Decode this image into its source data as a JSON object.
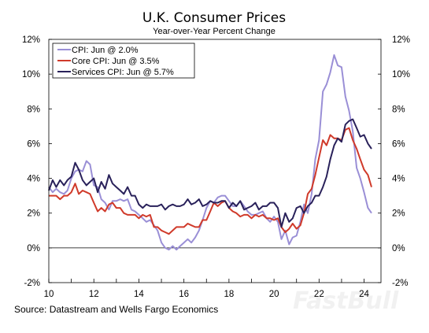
{
  "chart_data": {
    "type": "line",
    "title": "U.K. Consumer Prices",
    "subtitle": "Year-over-Year Percent Change",
    "ylim": [
      -2,
      12
    ],
    "xlim": [
      2010,
      2024.75
    ],
    "y_ticks_left": [
      "12%",
      "10%",
      "8%",
      "6%",
      "4%",
      "2%",
      "0%",
      "-2%"
    ],
    "y_ticks_right": [
      "12%",
      "10%",
      "8%",
      "6%",
      "4%",
      "2%",
      "0%",
      "-2%"
    ],
    "x_ticks": [
      "10",
      "12",
      "14",
      "16",
      "18",
      "20",
      "22",
      "24"
    ],
    "legend_placement": "top-left",
    "series": [
      {
        "name": "CPI: Jun @ 2.0%",
        "color": "#9a8fd6",
        "points": [
          [
            2010.0,
            3.5
          ],
          [
            2010.17,
            3.2
          ],
          [
            2010.33,
            3.4
          ],
          [
            2010.5,
            3.2
          ],
          [
            2010.67,
            3.1
          ],
          [
            2010.83,
            3.3
          ],
          [
            2011.0,
            4.0
          ],
          [
            2011.17,
            4.4
          ],
          [
            2011.33,
            4.5
          ],
          [
            2011.5,
            4.4
          ],
          [
            2011.67,
            5.0
          ],
          [
            2011.83,
            4.8
          ],
          [
            2012.0,
            3.6
          ],
          [
            2012.17,
            3.5
          ],
          [
            2012.33,
            2.8
          ],
          [
            2012.5,
            2.6
          ],
          [
            2012.67,
            2.2
          ],
          [
            2012.83,
            2.7
          ],
          [
            2013.0,
            2.7
          ],
          [
            2013.17,
            2.8
          ],
          [
            2013.33,
            2.7
          ],
          [
            2013.5,
            2.8
          ],
          [
            2013.67,
            2.2
          ],
          [
            2013.83,
            2.1
          ],
          [
            2014.0,
            1.9
          ],
          [
            2014.17,
            1.7
          ],
          [
            2014.33,
            1.5
          ],
          [
            2014.5,
            1.6
          ],
          [
            2014.67,
            1.3
          ],
          [
            2014.83,
            1.0
          ],
          [
            2015.0,
            0.3
          ],
          [
            2015.17,
            0.0
          ],
          [
            2015.33,
            -0.1
          ],
          [
            2015.5,
            0.1
          ],
          [
            2015.67,
            -0.1
          ],
          [
            2015.83,
            0.1
          ],
          [
            2016.0,
            0.3
          ],
          [
            2016.17,
            0.5
          ],
          [
            2016.33,
            0.3
          ],
          [
            2016.5,
            0.6
          ],
          [
            2016.67,
            1.0
          ],
          [
            2016.83,
            1.6
          ],
          [
            2017.0,
            2.3
          ],
          [
            2017.17,
            2.7
          ],
          [
            2017.33,
            2.6
          ],
          [
            2017.5,
            2.9
          ],
          [
            2017.67,
            3.0
          ],
          [
            2017.83,
            3.0
          ],
          [
            2018.0,
            2.7
          ],
          [
            2018.17,
            2.4
          ],
          [
            2018.33,
            2.4
          ],
          [
            2018.5,
            2.7
          ],
          [
            2018.67,
            2.4
          ],
          [
            2018.83,
            2.1
          ],
          [
            2019.0,
            1.9
          ],
          [
            2019.17,
            1.9
          ],
          [
            2019.33,
            2.0
          ],
          [
            2019.5,
            2.1
          ],
          [
            2019.67,
            1.7
          ],
          [
            2019.83,
            1.5
          ],
          [
            2020.0,
            1.8
          ],
          [
            2020.17,
            1.5
          ],
          [
            2020.33,
            0.5
          ],
          [
            2020.5,
            1.0
          ],
          [
            2020.67,
            0.2
          ],
          [
            2020.83,
            0.6
          ],
          [
            2021.0,
            0.7
          ],
          [
            2021.17,
            1.5
          ],
          [
            2021.33,
            2.5
          ],
          [
            2021.5,
            2.0
          ],
          [
            2021.67,
            3.1
          ],
          [
            2021.83,
            5.1
          ],
          [
            2022.0,
            6.2
          ],
          [
            2022.17,
            9.0
          ],
          [
            2022.33,
            9.4
          ],
          [
            2022.5,
            10.1
          ],
          [
            2022.67,
            11.1
          ],
          [
            2022.83,
            10.5
          ],
          [
            2023.0,
            10.4
          ],
          [
            2023.17,
            8.7
          ],
          [
            2023.33,
            7.9
          ],
          [
            2023.5,
            6.7
          ],
          [
            2023.67,
            4.6
          ],
          [
            2023.83,
            4.0
          ],
          [
            2024.0,
            3.2
          ],
          [
            2024.17,
            2.3
          ],
          [
            2024.33,
            2.0
          ]
        ]
      },
      {
        "name": "Core CPI: Jun @ 3.5%",
        "color": "#d03a2a",
        "points": [
          [
            2010.0,
            3.0
          ],
          [
            2010.17,
            3.0
          ],
          [
            2010.33,
            3.0
          ],
          [
            2010.5,
            2.8
          ],
          [
            2010.67,
            3.0
          ],
          [
            2010.83,
            3.0
          ],
          [
            2011.0,
            3.2
          ],
          [
            2011.17,
            3.7
          ],
          [
            2011.33,
            3.1
          ],
          [
            2011.5,
            3.3
          ],
          [
            2011.67,
            3.2
          ],
          [
            2011.83,
            3.1
          ],
          [
            2012.0,
            2.6
          ],
          [
            2012.17,
            2.1
          ],
          [
            2012.33,
            2.3
          ],
          [
            2012.5,
            2.1
          ],
          [
            2012.67,
            2.5
          ],
          [
            2012.83,
            2.6
          ],
          [
            2013.0,
            2.3
          ],
          [
            2013.17,
            2.3
          ],
          [
            2013.33,
            2.0
          ],
          [
            2013.5,
            1.9
          ],
          [
            2013.67,
            1.9
          ],
          [
            2013.83,
            1.9
          ],
          [
            2014.0,
            1.7
          ],
          [
            2014.17,
            1.9
          ],
          [
            2014.33,
            1.8
          ],
          [
            2014.5,
            1.9
          ],
          [
            2014.67,
            1.2
          ],
          [
            2014.83,
            1.2
          ],
          [
            2015.0,
            1.0
          ],
          [
            2015.17,
            0.9
          ],
          [
            2015.33,
            0.8
          ],
          [
            2015.5,
            1.0
          ],
          [
            2015.67,
            1.2
          ],
          [
            2015.83,
            1.2
          ],
          [
            2016.0,
            1.2
          ],
          [
            2016.17,
            1.4
          ],
          [
            2016.33,
            1.3
          ],
          [
            2016.5,
            1.2
          ],
          [
            2016.67,
            1.2
          ],
          [
            2016.83,
            1.6
          ],
          [
            2017.0,
            1.6
          ],
          [
            2017.17,
            2.1
          ],
          [
            2017.33,
            2.6
          ],
          [
            2017.5,
            2.4
          ],
          [
            2017.67,
            2.6
          ],
          [
            2017.83,
            2.7
          ],
          [
            2018.0,
            2.3
          ],
          [
            2018.17,
            2.1
          ],
          [
            2018.33,
            2.0
          ],
          [
            2018.5,
            1.8
          ],
          [
            2018.67,
            1.9
          ],
          [
            2018.83,
            1.9
          ],
          [
            2019.0,
            1.7
          ],
          [
            2019.17,
            1.9
          ],
          [
            2019.33,
            1.8
          ],
          [
            2019.5,
            1.9
          ],
          [
            2019.67,
            1.7
          ],
          [
            2019.83,
            1.7
          ],
          [
            2020.0,
            1.6
          ],
          [
            2020.17,
            1.7
          ],
          [
            2020.33,
            1.2
          ],
          [
            2020.5,
            0.9
          ],
          [
            2020.67,
            1.1
          ],
          [
            2020.83,
            1.4
          ],
          [
            2021.0,
            1.1
          ],
          [
            2021.17,
            1.3
          ],
          [
            2021.33,
            2.0
          ],
          [
            2021.5,
            3.1
          ],
          [
            2021.67,
            3.4
          ],
          [
            2021.83,
            4.2
          ],
          [
            2022.0,
            5.2
          ],
          [
            2022.17,
            6.2
          ],
          [
            2022.33,
            5.9
          ],
          [
            2022.5,
            6.5
          ],
          [
            2022.67,
            6.3
          ],
          [
            2022.83,
            6.3
          ],
          [
            2023.0,
            6.2
          ],
          [
            2023.17,
            6.8
          ],
          [
            2023.33,
            6.9
          ],
          [
            2023.5,
            6.2
          ],
          [
            2023.67,
            5.7
          ],
          [
            2023.83,
            5.1
          ],
          [
            2024.0,
            4.5
          ],
          [
            2024.17,
            4.2
          ],
          [
            2024.33,
            3.5
          ]
        ]
      },
      {
        "name": "Services CPI: Jun @ 5.7%",
        "color": "#29215a",
        "points": [
          [
            2010.0,
            3.3
          ],
          [
            2010.17,
            3.9
          ],
          [
            2010.33,
            3.5
          ],
          [
            2010.5,
            3.9
          ],
          [
            2010.67,
            3.6
          ],
          [
            2010.83,
            3.9
          ],
          [
            2011.0,
            4.1
          ],
          [
            2011.17,
            4.9
          ],
          [
            2011.33,
            4.5
          ],
          [
            2011.5,
            3.9
          ],
          [
            2011.67,
            3.6
          ],
          [
            2011.83,
            3.8
          ],
          [
            2012.0,
            4.0
          ],
          [
            2012.17,
            3.2
          ],
          [
            2012.33,
            3.8
          ],
          [
            2012.5,
            3.4
          ],
          [
            2012.67,
            4.2
          ],
          [
            2012.83,
            3.7
          ],
          [
            2013.0,
            3.5
          ],
          [
            2013.17,
            3.3
          ],
          [
            2013.33,
            3.1
          ],
          [
            2013.5,
            3.5
          ],
          [
            2013.67,
            3.0
          ],
          [
            2013.83,
            3.0
          ],
          [
            2014.0,
            2.5
          ],
          [
            2014.17,
            2.3
          ],
          [
            2014.33,
            2.5
          ],
          [
            2014.5,
            2.4
          ],
          [
            2014.67,
            2.4
          ],
          [
            2014.83,
            2.4
          ],
          [
            2015.0,
            2.5
          ],
          [
            2015.17,
            2.2
          ],
          [
            2015.33,
            2.4
          ],
          [
            2015.5,
            2.5
          ],
          [
            2015.67,
            2.4
          ],
          [
            2015.83,
            2.4
          ],
          [
            2016.0,
            2.5
          ],
          [
            2016.17,
            2.8
          ],
          [
            2016.33,
            2.5
          ],
          [
            2016.5,
            2.6
          ],
          [
            2016.67,
            2.8
          ],
          [
            2016.83,
            2.4
          ],
          [
            2017.0,
            2.5
          ],
          [
            2017.17,
            2.7
          ],
          [
            2017.33,
            2.6
          ],
          [
            2017.5,
            2.6
          ],
          [
            2017.67,
            2.7
          ],
          [
            2017.83,
            2.7
          ],
          [
            2018.0,
            2.3
          ],
          [
            2018.17,
            2.6
          ],
          [
            2018.33,
            2.4
          ],
          [
            2018.5,
            2.7
          ],
          [
            2018.67,
            2.2
          ],
          [
            2018.83,
            2.3
          ],
          [
            2019.0,
            2.4
          ],
          [
            2019.17,
            2.6
          ],
          [
            2019.33,
            2.2
          ],
          [
            2019.5,
            2.4
          ],
          [
            2019.67,
            2.4
          ],
          [
            2019.83,
            2.6
          ],
          [
            2020.0,
            2.6
          ],
          [
            2020.17,
            2.3
          ],
          [
            2020.33,
            1.2
          ],
          [
            2020.5,
            2.0
          ],
          [
            2020.67,
            1.5
          ],
          [
            2020.83,
            1.7
          ],
          [
            2021.0,
            2.3
          ],
          [
            2021.17,
            2.4
          ],
          [
            2021.33,
            2.0
          ],
          [
            2021.5,
            2.4
          ],
          [
            2021.67,
            2.6
          ],
          [
            2021.83,
            3.0
          ],
          [
            2022.0,
            3.0
          ],
          [
            2022.17,
            3.5
          ],
          [
            2022.33,
            4.1
          ],
          [
            2022.5,
            5.1
          ],
          [
            2022.67,
            5.9
          ],
          [
            2022.83,
            6.3
          ],
          [
            2023.0,
            6.1
          ],
          [
            2023.17,
            7.1
          ],
          [
            2023.33,
            7.3
          ],
          [
            2023.5,
            7.4
          ],
          [
            2023.67,
            6.9
          ],
          [
            2023.83,
            6.4
          ],
          [
            2024.0,
            6.5
          ],
          [
            2024.17,
            6.0
          ],
          [
            2024.33,
            5.7
          ]
        ]
      }
    ],
    "source": "Source: Datastream and Wells Fargo Economics"
  },
  "watermark": "FastBull"
}
